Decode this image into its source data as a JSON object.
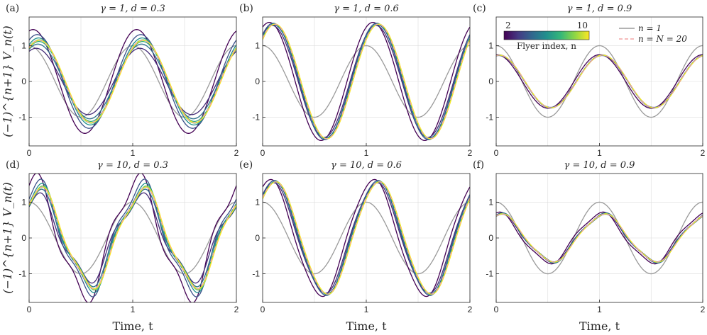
{
  "chart_data": {
    "type": "line",
    "xlabel": "Time, t",
    "ylabel": "(−1)^{n+1} V_n(t)",
    "xlim": [
      0,
      2
    ],
    "ylim": [
      -1.8,
      1.8
    ],
    "xticks": [
      0,
      1,
      2
    ],
    "yticks": [
      -1,
      0,
      1
    ],
    "grid": true,
    "colorbar": {
      "label": "Flyer index, n",
      "min_label": "2",
      "max_label": "10",
      "colors": [
        "#440154",
        "#443a83",
        "#31688e",
        "#21908d",
        "#35b779",
        "#8fd744",
        "#fde725"
      ]
    },
    "legend": {
      "placement": "top-right",
      "entries": [
        {
          "label": "n = 1",
          "color": "#9a9a9a",
          "style": "solid"
        },
        {
          "label": "n = N = 20",
          "color": "#f4a6a6",
          "style": "dashed"
        }
      ]
    },
    "panels": [
      {
        "label": "(a)",
        "title": "γ = 1, d = 0.3",
        "gamma": 1,
        "d": 0.3,
        "period": 1,
        "phase_n1": 0.0,
        "amp_n1": 1.0,
        "amp_range": [
          0.85,
          1.45
        ],
        "phase_range": [
          0.03,
          0.1
        ],
        "harmonic": 0.0,
        "x": [
          0,
          0.25,
          0.5,
          0.75,
          1.0,
          1.25,
          1.5,
          1.75,
          2.0
        ]
      },
      {
        "label": "(b)",
        "title": "γ = 1, d = 0.6",
        "gamma": 1,
        "d": 0.6,
        "period": 1,
        "phase_n1": 0.0,
        "amp_n1": 1.0,
        "amp_range": [
          1.55,
          1.65
        ],
        "phase_range": [
          0.06,
          0.12
        ],
        "harmonic": 0.0,
        "x": [
          0,
          0.25,
          0.5,
          0.75,
          1.0,
          1.25,
          1.5,
          1.75,
          2.0
        ]
      },
      {
        "label": "(c)",
        "title": "γ = 1, d = 0.9",
        "gamma": 1,
        "d": 0.9,
        "period": 1,
        "phase_n1": 0.0,
        "amp_n1": 1.0,
        "amp_range": [
          0.72,
          0.75
        ],
        "phase_range": [
          0.02,
          0.03
        ],
        "harmonic": 0.0,
        "x": [
          0,
          0.25,
          0.5,
          0.75,
          1.0,
          1.25,
          1.5,
          1.75,
          2.0
        ]
      },
      {
        "label": "(d)",
        "title": "γ = 10, d = 0.3",
        "gamma": 10,
        "d": 0.3,
        "period": 1,
        "phase_n1": 0.0,
        "amp_n1": 1.0,
        "amp_range": [
          1.05,
          1.6
        ],
        "phase_range": [
          0.03,
          0.1
        ],
        "harmonic": 0.18,
        "x": [
          0,
          0.25,
          0.5,
          0.75,
          1.0,
          1.25,
          1.5,
          1.75,
          2.0
        ]
      },
      {
        "label": "(e)",
        "title": "γ = 10, d = 0.6",
        "gamma": 10,
        "d": 0.6,
        "period": 1,
        "phase_n1": 0.0,
        "amp_n1": 1.0,
        "amp_range": [
          1.5,
          1.6
        ],
        "phase_range": [
          0.06,
          0.12
        ],
        "harmonic": 0.04,
        "x": [
          0,
          0.25,
          0.5,
          0.75,
          1.0,
          1.25,
          1.5,
          1.75,
          2.0
        ]
      },
      {
        "label": "(f)",
        "title": "γ = 10, d = 0.9",
        "gamma": 10,
        "d": 0.9,
        "period": 1,
        "phase_n1": 0.0,
        "amp_n1": 1.0,
        "amp_range": [
          0.62,
          0.68
        ],
        "phase_range": [
          0.02,
          0.04
        ],
        "harmonic": 0.1,
        "x": [
          0,
          0.25,
          0.5,
          0.75,
          1.0,
          1.25,
          1.5,
          1.75,
          2.0
        ]
      }
    ]
  }
}
